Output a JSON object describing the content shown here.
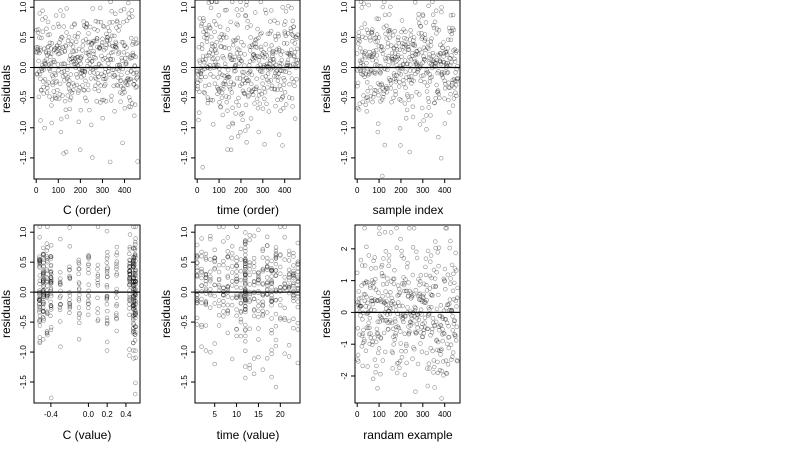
{
  "chart_data": [
    {
      "type": "scatter",
      "xlabel": "C (order)",
      "ylabel": "residuals",
      "xlim": [
        -10,
        470
      ],
      "ylim": [
        -1.85,
        1.12
      ],
      "xticks": [
        0,
        100,
        200,
        300,
        400
      ],
      "yticks": [
        1.0,
        0.5,
        0.0,
        -0.5,
        -1.0,
        -1.5
      ],
      "hline": 0,
      "n": 460,
      "marker": "open-circle",
      "pattern": "order"
    },
    {
      "type": "scatter",
      "xlabel": "time (order)",
      "ylabel": "residuals",
      "xlim": [
        -10,
        470
      ],
      "ylim": [
        -1.85,
        1.12
      ],
      "xticks": [
        0,
        100,
        200,
        300,
        400
      ],
      "yticks": [
        1.0,
        0.5,
        0.0,
        -0.5,
        -1.0,
        -1.5
      ],
      "hline": 0,
      "n": 460,
      "marker": "open-circle",
      "pattern": "order"
    },
    {
      "type": "scatter",
      "xlabel": "sample index",
      "ylabel": "residuals",
      "xlim": [
        -10,
        470
      ],
      "ylim": [
        -1.85,
        1.12
      ],
      "xticks": [
        0,
        100,
        200,
        300,
        400
      ],
      "yticks": [
        1.0,
        0.5,
        0.0,
        -0.5,
        -1.0,
        -1.5
      ],
      "hline": 0,
      "n": 460,
      "marker": "open-circle",
      "pattern": "order"
    },
    {
      "type": "scatter",
      "xlabel": "C (value)",
      "ylabel": "residuals",
      "xlim": [
        -0.58,
        0.55
      ],
      "ylim": [
        -1.85,
        1.12
      ],
      "xticks": [
        -0.4,
        0.0,
        0.2,
        0.4
      ],
      "xtick_labels": [
        "-0.4",
        "0.0",
        "0.2",
        "0.4"
      ],
      "yticks": [
        1.0,
        0.5,
        0.0,
        -0.5,
        -1.0,
        -1.5
      ],
      "hline": 0,
      "n": 460,
      "marker": "open-circle",
      "pattern": "discrete-c"
    },
    {
      "type": "scatter",
      "xlabel": "time (value)",
      "ylabel": "residuals",
      "xlim": [
        0.5,
        24.5
      ],
      "ylim": [
        -1.85,
        1.12
      ],
      "xticks": [
        5,
        10,
        15,
        20
      ],
      "yticks": [
        1.0,
        0.5,
        0.0,
        -0.5,
        -1.0,
        -1.5
      ],
      "hline": 0,
      "n": 460,
      "marker": "open-circle",
      "pattern": "discrete-time"
    },
    {
      "type": "scatter",
      "xlabel": "randam example",
      "ylabel": "residuals",
      "xlim": [
        -10,
        470
      ],
      "ylim": [
        -2.85,
        2.75
      ],
      "xticks": [
        0,
        100,
        200,
        300,
        400
      ],
      "yticks": [
        2,
        1,
        0,
        -1,
        -2
      ],
      "hline": 0,
      "n": 460,
      "marker": "open-circle",
      "pattern": "random"
    }
  ]
}
